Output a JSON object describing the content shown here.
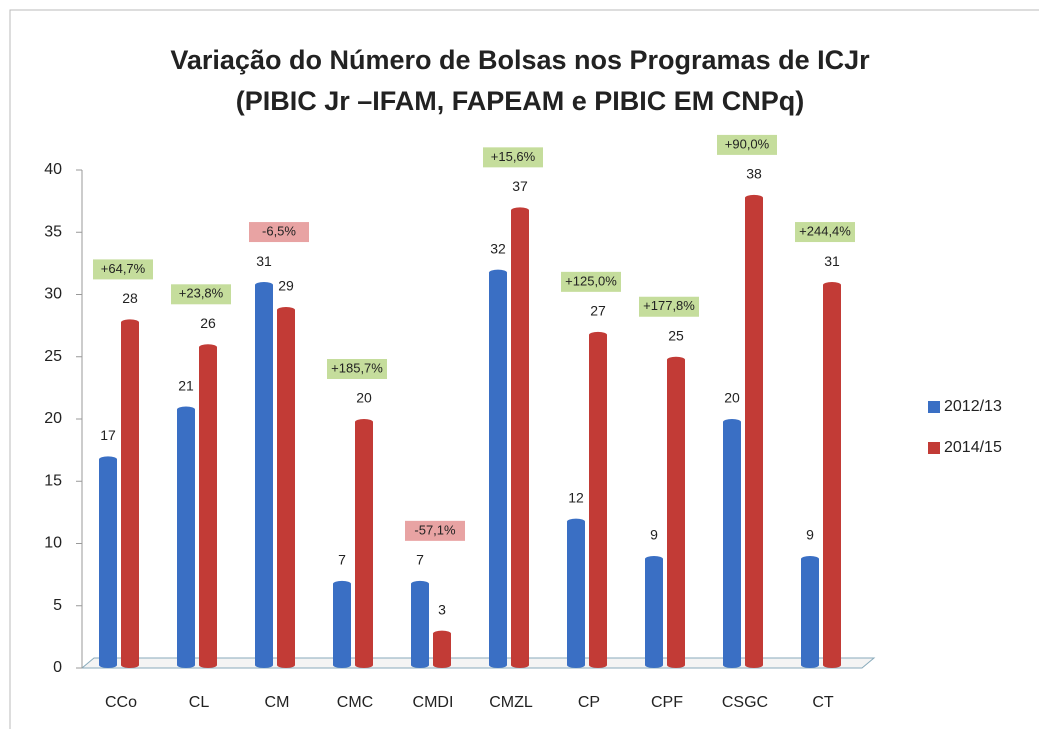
{
  "chart_data": {
    "type": "bar",
    "title": "Variação do Número de Bolsas nos Programas de ICJr",
    "subtitle": "(PIBIC Jr –IFAM, FAPEAM e PIBIC EM CNPq)",
    "categories": [
      "CCo",
      "CL",
      "CM",
      "CMC",
      "CMDI",
      "CMZL",
      "CP",
      "CPF",
      "CSGC",
      "CT"
    ],
    "series": [
      {
        "name": "2012/13",
        "color": "#3a6fc4",
        "values": [
          17,
          21,
          31,
          7,
          7,
          32,
          12,
          9,
          20,
          9
        ]
      },
      {
        "name": "2014/15",
        "color": "#c23b36",
        "values": [
          28,
          26,
          29,
          20,
          3,
          37,
          27,
          25,
          38,
          31
        ]
      }
    ],
    "annotations": [
      "+64,7%",
      "+23,8%",
      "-6,5%",
      "+185,7%",
      "-57,1%",
      "+15,6%",
      "+125,0%",
      "+177,8%",
      "+90,0%",
      "+244,4%"
    ],
    "annotation_colors": [
      "#c5dd9c",
      "#c5dd9c",
      "#e8a3a3",
      "#c5dd9c",
      "#e8a3a3",
      "#c5dd9c",
      "#c5dd9c",
      "#c5dd9c",
      "#c5dd9c",
      "#c5dd9c"
    ],
    "ylim": [
      0,
      40
    ],
    "yticks": [
      0,
      5,
      10,
      15,
      20,
      25,
      30,
      35,
      40
    ],
    "legend": "right"
  }
}
